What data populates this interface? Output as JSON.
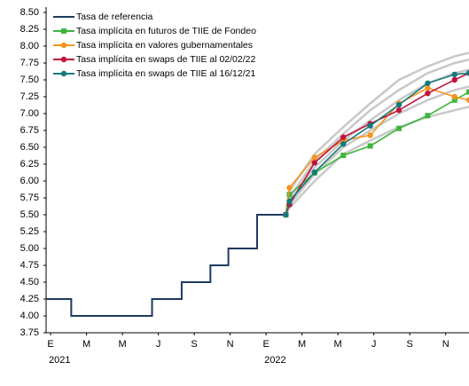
{
  "chart_data": {
    "type": "line",
    "xlim": [
      -0.25,
      23.3
    ],
    "ylim": [
      3.75,
      8.5
    ],
    "yticks": [
      3.75,
      {
        "value": 4,
        "label": "4.00"
      },
      4.25,
      {
        "value": 4.5,
        "label": "4.50"
      },
      4.75,
      {
        "value": 5,
        "label": "5.00"
      },
      5.25,
      {
        "value": 5.5,
        "label": "5.50"
      },
      5.75,
      {
        "value": 6,
        "label": "6.00"
      },
      6.25,
      {
        "value": 6.5,
        "label": "6.50"
      },
      6.75,
      {
        "value": 7,
        "label": "7.00"
      },
      7.25,
      {
        "value": 7.5,
        "label": "7.50"
      },
      7.75,
      {
        "value": 8,
        "label": "8.00"
      },
      8.25,
      {
        "value": 8.5,
        "label": "8.50"
      }
    ],
    "xticks": [
      {
        "value": 0,
        "label": "E"
      },
      {
        "value": 2,
        "label": "M"
      },
      {
        "value": 4,
        "label": "M"
      },
      {
        "value": 6,
        "label": "J"
      },
      {
        "value": 8,
        "label": "S"
      },
      {
        "value": 10,
        "label": "N"
      },
      {
        "value": 12,
        "label": "E"
      },
      {
        "value": 14,
        "label": "M"
      },
      {
        "value": 16,
        "label": "M"
      },
      {
        "value": 18,
        "label": "J"
      },
      {
        "value": 20,
        "label": "S"
      },
      {
        "value": 22,
        "label": "N"
      }
    ],
    "year_labels": [
      {
        "value": 0,
        "label": "2021"
      },
      {
        "value": 12,
        "label": "2022"
      }
    ],
    "gray_curves": {
      "color": "#c8c8c8",
      "x": [
        13.1,
        13.3,
        14.7,
        16.3,
        17.8,
        19.4,
        21.0,
        22.5,
        23.3
      ],
      "curves": [
        [
          5.5,
          5.85,
          6.4,
          6.8,
          7.15,
          7.5,
          7.7,
          7.85,
          7.9
        ],
        [
          5.5,
          5.75,
          6.3,
          6.7,
          7.05,
          7.35,
          7.6,
          7.75,
          7.8
        ],
        [
          5.5,
          5.7,
          6.2,
          6.6,
          6.9,
          7.2,
          7.45,
          7.6,
          7.65
        ],
        [
          5.5,
          5.65,
          6.1,
          6.5,
          6.75,
          7.0,
          7.2,
          7.35,
          7.4
        ],
        [
          5.5,
          5.6,
          6.0,
          6.4,
          6.6,
          6.8,
          6.95,
          7.05,
          7.1
        ]
      ]
    },
    "series": [
      {
        "name": "Tasa de referencia",
        "color": "#1f3a5f",
        "marker": "none",
        "x": [
          -0.25,
          1.15,
          1.15,
          5.65,
          5.65,
          7.3,
          7.3,
          8.9,
          8.9,
          9.9,
          9.9,
          11.5,
          11.5,
          13.1
        ],
        "values": [
          4.25,
          4.25,
          4.0,
          4.0,
          4.25,
          4.25,
          4.5,
          4.5,
          4.75,
          4.75,
          5.0,
          5.0,
          5.5,
          5.5
        ]
      },
      {
        "name": "Tasa implícita en futuros de TIIE de Fondeo",
        "color": "#3db53d",
        "marker": "square",
        "x": [
          13.1,
          13.3,
          14.7,
          16.3,
          17.8,
          19.4,
          21.0,
          22.5,
          23.3
        ],
        "values": [
          5.5,
          5.8,
          6.12,
          6.38,
          6.52,
          6.78,
          6.97,
          7.2,
          7.32
        ]
      },
      {
        "name": "Tasa implícita en valores gubernamentales",
        "color": "#f7941d",
        "marker": "circle",
        "x": [
          13.1,
          13.3,
          14.7,
          16.3,
          17.8,
          19.4,
          21.0,
          22.5,
          23.3
        ],
        "values": [
          5.5,
          5.9,
          6.35,
          6.6,
          6.68,
          7.15,
          7.38,
          7.25,
          7.2
        ]
      },
      {
        "name": "Tasa implícita en swaps de TIIE al 02/02/22",
        "color": "#c0143c",
        "marker": "circle",
        "x": [
          13.1,
          13.3,
          14.7,
          16.3,
          17.8,
          19.4,
          21.0,
          22.5,
          23.3
        ],
        "values": [
          5.5,
          5.65,
          6.27,
          6.65,
          6.85,
          7.05,
          7.3,
          7.5,
          7.6
        ]
      },
      {
        "name": "Tasa implícita en swaps de TIIE al 16/12/21",
        "color": "#167a7a",
        "marker": "circle",
        "x": [
          13.1,
          13.3,
          14.7,
          16.3,
          17.8,
          19.4,
          21.0,
          22.5,
          23.3
        ],
        "values": [
          5.5,
          5.7,
          6.13,
          6.55,
          6.82,
          7.13,
          7.45,
          7.58,
          7.6
        ]
      }
    ]
  }
}
